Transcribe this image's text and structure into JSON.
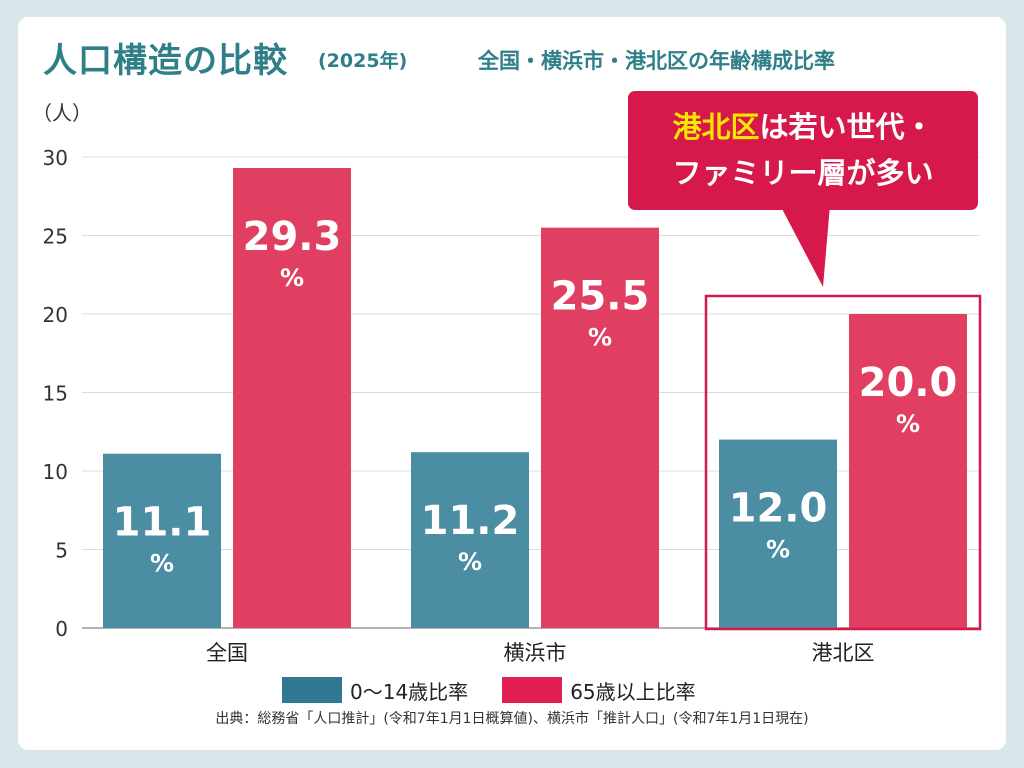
{
  "title": "人口構造の比較",
  "title_year": "(2025年)",
  "subtitle": "全国・横浜市・港北区の年齢構成比率",
  "callout": {
    "highlight": "港北区",
    "line1_rest": "は若い世代・",
    "line2": "ファミリー層が多い"
  },
  "source": "出典：総務省「人口推計」(令和7年1月1日概算値)、横浜市「推計人口」(令和7年1月1日現在)",
  "colors": {
    "young": "#4b8da2",
    "senior": "#e03f62",
    "legend_young": "#2f7a92",
    "legend_senior": "#e21e50",
    "accent": "#d6184a",
    "title": "#2e7f88"
  },
  "chart_data": {
    "type": "bar",
    "ylabel": "（人）",
    "ylim": [
      0,
      30
    ],
    "yticks": [
      0,
      5,
      10,
      15,
      20,
      25,
      30
    ],
    "grid": true,
    "categories": [
      "全国",
      "横浜市",
      "港北区"
    ],
    "series": [
      {
        "name": "0〜14歳比率",
        "values": [
          11.1,
          11.2,
          12.0
        ],
        "labels": [
          "11.1",
          "11.2",
          "12.0"
        ]
      },
      {
        "name": "65歳以上比率",
        "values": [
          29.3,
          25.5,
          20.0
        ],
        "labels": [
          "29.3",
          "25.5",
          "20.0"
        ]
      }
    ],
    "value_unit": "%",
    "highlight_category": "港北区",
    "legend_position": "bottom"
  }
}
